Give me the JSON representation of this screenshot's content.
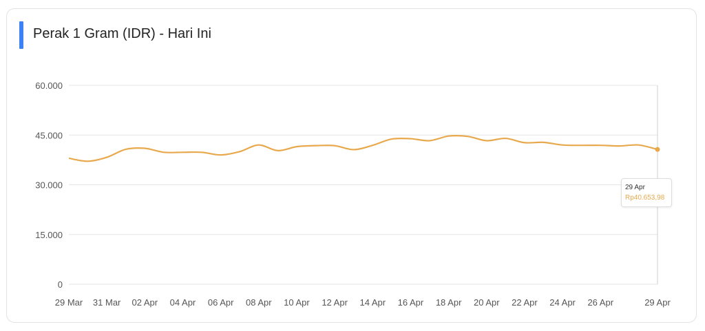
{
  "header": {
    "title": "Perak 1 Gram (IDR) - Hari Ini"
  },
  "colors": {
    "accent": "#3b82f6",
    "line": "#e8a84c",
    "grid": "#e6e6e6",
    "tick_text": "#555555"
  },
  "tooltip": {
    "date": "29 Apr",
    "value": "Rp40.653,98"
  },
  "chart_data": {
    "type": "line",
    "title": "Perak 1 Gram (IDR) - Hari Ini",
    "xlabel": "",
    "ylabel": "",
    "ylim": [
      0,
      60000
    ],
    "grid": true,
    "yticks": [
      0,
      15000,
      30000,
      45000,
      60000
    ],
    "ytick_labels": [
      "0",
      "15.000",
      "30.000",
      "45.000",
      "60.000"
    ],
    "xtick_labels": [
      "29 Mar",
      "31 Mar",
      "02 Apr",
      "04 Apr",
      "06 Apr",
      "08 Apr",
      "10 Apr",
      "12 Apr",
      "14 Apr",
      "16 Apr",
      "18 Apr",
      "20 Apr",
      "22 Apr",
      "24 Apr",
      "26 Apr",
      "29 Apr"
    ],
    "x": [
      "29 Mar",
      "30 Mar",
      "31 Mar",
      "01 Apr",
      "02 Apr",
      "03 Apr",
      "04 Apr",
      "05 Apr",
      "06 Apr",
      "07 Apr",
      "08 Apr",
      "09 Apr",
      "10 Apr",
      "11 Apr",
      "12 Apr",
      "13 Apr",
      "14 Apr",
      "15 Apr",
      "16 Apr",
      "17 Apr",
      "18 Apr",
      "19 Apr",
      "20 Apr",
      "21 Apr",
      "22 Apr",
      "23 Apr",
      "24 Apr",
      "25 Apr",
      "26 Apr",
      "27 Apr",
      "28 Apr",
      "29 Apr"
    ],
    "series": [
      {
        "values": [
          38000,
          37100,
          38300,
          40700,
          41000,
          39800,
          39800,
          39800,
          39000,
          40000,
          42000,
          40300,
          41500,
          41800,
          41800,
          40600,
          41900,
          43800,
          43900,
          43300,
          44700,
          44600,
          43300,
          44000,
          42700,
          42800,
          42000,
          41900,
          41900,
          41700,
          42000,
          40654
        ]
      }
    ]
  }
}
